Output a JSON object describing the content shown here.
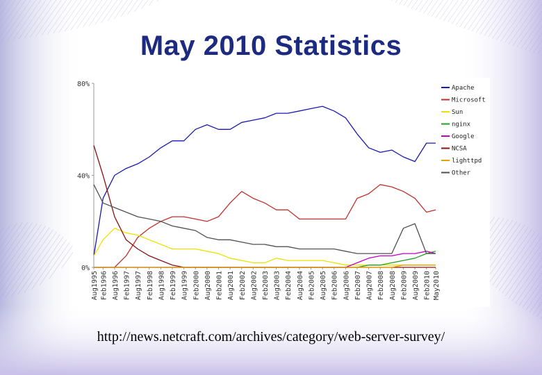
{
  "slide": {
    "title": "May 2010 Statistics",
    "source_url": "http://news.netcraft.com/archives/category/web-server-survey/"
  },
  "chart_data": {
    "type": "line",
    "title": "",
    "xlabel": "",
    "ylabel": "",
    "ylim": [
      0,
      80
    ],
    "yticks": [
      "0%",
      "40%",
      "80%"
    ],
    "x": [
      1995.6,
      1996.0,
      1996.5,
      1997.0,
      1997.5,
      1998.0,
      1998.5,
      1999.0,
      1999.5,
      2000.0,
      2000.5,
      2001.0,
      2001.5,
      2002.0,
      2002.5,
      2003.0,
      2003.5,
      2004.0,
      2004.5,
      2005.0,
      2005.5,
      2006.0,
      2006.5,
      2007.0,
      2007.5,
      2008.0,
      2008.5,
      2009.0,
      2009.5,
      2010.0,
      2010.4
    ],
    "xtick_labels": [
      "Aug1995",
      "Feb1996",
      "Aug1996",
      "Feb1997",
      "Aug1997",
      "Feb1998",
      "Aug1998",
      "Feb1999",
      "Aug1999",
      "Feb2000",
      "Aug2000",
      "Feb2001",
      "Aug2001",
      "Feb2002",
      "Aug2002",
      "Feb2003",
      "Aug2003",
      "Feb2004",
      "Aug2004",
      "Feb2005",
      "Aug2005",
      "Feb2006",
      "Aug2006",
      "Feb2007",
      "Aug2007",
      "Feb2008",
      "Aug2008",
      "Feb2009",
      "Aug2009",
      "Feb2010",
      "May2010"
    ],
    "grid": false,
    "legend_position": "right",
    "series": [
      {
        "name": "Apache",
        "color": "#1a1ab0",
        "values": [
          5,
          30,
          40,
          43,
          45,
          48,
          52,
          55,
          55,
          60,
          62,
          60,
          60,
          63,
          64,
          65,
          67,
          67,
          68,
          69,
          70,
          68,
          65,
          58,
          52,
          50,
          51,
          48,
          46,
          54,
          54
        ]
      },
      {
        "name": "Microsoft",
        "color": "#c0302a",
        "values": [
          0,
          0,
          0,
          5,
          13,
          17,
          20,
          22,
          22,
          21,
          20,
          22,
          28,
          33,
          30,
          28,
          25,
          25,
          21,
          21,
          21,
          21,
          21,
          30,
          32,
          36,
          35,
          33,
          30,
          24,
          25
        ]
      },
      {
        "name": "Sun",
        "color": "#f0e000",
        "values": [
          5,
          12,
          17,
          15,
          14,
          12,
          10,
          8,
          8,
          8,
          7,
          6,
          4,
          3,
          2,
          2,
          4,
          3,
          3,
          3,
          3,
          2,
          1,
          1,
          1,
          1,
          1,
          1,
          1,
          1,
          1
        ]
      },
      {
        "name": "nginx",
        "color": "#20a020",
        "values": [
          0,
          0,
          0,
          0,
          0,
          0,
          0,
          0,
          0,
          0,
          0,
          0,
          0,
          0,
          0,
          0,
          0,
          0,
          0,
          0,
          0,
          0,
          0,
          0,
          1,
          1,
          2,
          3,
          4,
          6,
          7
        ]
      },
      {
        "name": "Google",
        "color": "#c000c0",
        "values": [
          0,
          0,
          0,
          0,
          0,
          0,
          0,
          0,
          0,
          0,
          0,
          0,
          0,
          0,
          0,
          0,
          0,
          0,
          0,
          0,
          0,
          0,
          0,
          2,
          4,
          5,
          5,
          6,
          6,
          7,
          6
        ]
      },
      {
        "name": "NCSA",
        "color": "#8b1010",
        "values": [
          53,
          40,
          22,
          12,
          8,
          5,
          3,
          1,
          0,
          0,
          0,
          0,
          0,
          0,
          0,
          0,
          0,
          0,
          0,
          0,
          0,
          0,
          0,
          0,
          0,
          0,
          0,
          0,
          0,
          0,
          0
        ]
      },
      {
        "name": "lighttpd",
        "color": "#e8a000",
        "values": [
          0,
          0,
          0,
          0,
          0,
          0,
          0,
          0,
          0,
          0,
          0,
          0,
          0,
          0,
          0,
          0,
          0,
          0,
          0,
          0,
          0,
          0,
          0,
          0,
          0,
          0,
          0,
          1,
          1,
          1,
          1
        ]
      },
      {
        "name": "Other",
        "color": "#505050",
        "values": [
          36,
          28,
          26,
          24,
          22,
          21,
          20,
          18,
          17,
          16,
          13,
          12,
          12,
          11,
          10,
          10,
          9,
          9,
          8,
          8,
          8,
          8,
          7,
          6,
          6,
          6,
          6,
          17,
          19,
          6,
          6
        ]
      }
    ]
  }
}
